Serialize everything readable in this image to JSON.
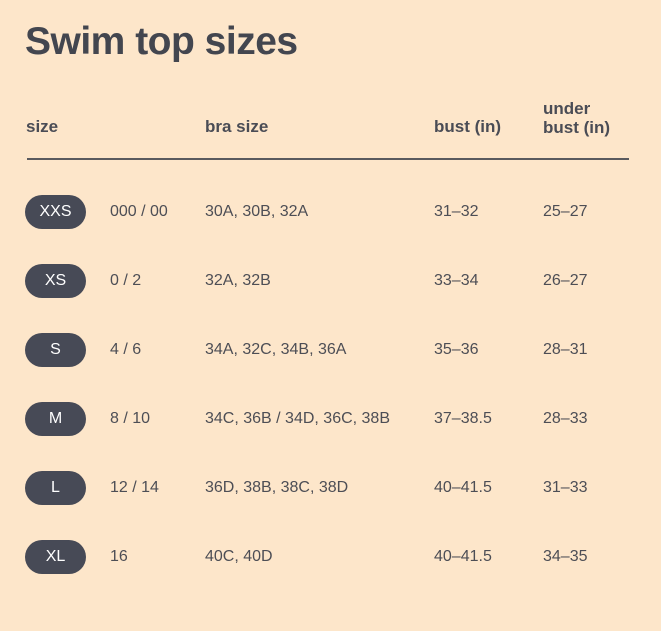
{
  "title": "Swim top sizes",
  "headers": {
    "size": "size",
    "bra_size": "bra size",
    "bust": "bust (in)",
    "under_bust_line1": "under",
    "under_bust_line2": "bust (in)"
  },
  "rows": [
    {
      "size": "XXS",
      "numeric": "000 / 00",
      "bra": "30A, 30B, 32A",
      "bust": "31–32",
      "under": "25–27"
    },
    {
      "size": "XS",
      "numeric": "0 / 2",
      "bra": "32A, 32B",
      "bust": "33–34",
      "under": "26–27"
    },
    {
      "size": "S",
      "numeric": "4 / 6",
      "bra": "34A, 32C, 34B, 36A",
      "bust": "35–36",
      "under": "28–31"
    },
    {
      "size": "M",
      "numeric": "8 / 10",
      "bra": "34C, 36B / 34D, 36C, 38B",
      "bust": "37–38.5",
      "under": "28–33"
    },
    {
      "size": "L",
      "numeric": "12 / 14",
      "bra": "36D, 38B, 38C, 38D",
      "bust": "40–41.5",
      "under": "31–33"
    },
    {
      "size": "XL",
      "numeric": "16",
      "bra": "40C, 40D",
      "bust": "40–41.5",
      "under": "34–35"
    }
  ]
}
